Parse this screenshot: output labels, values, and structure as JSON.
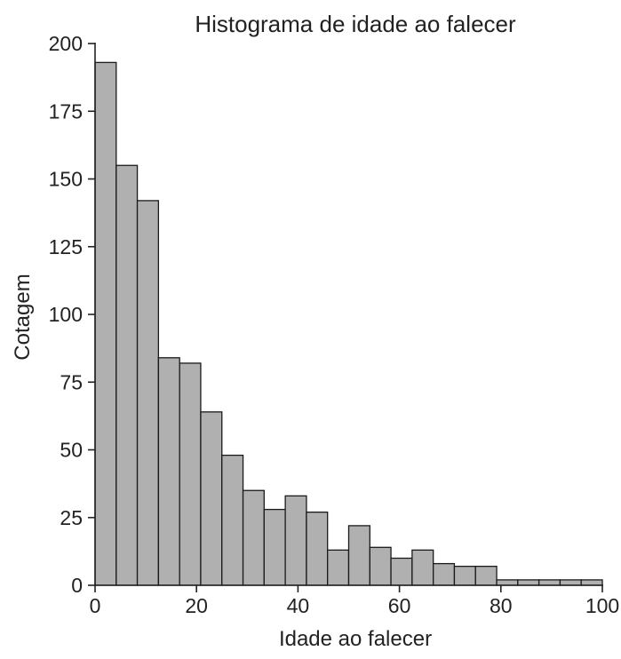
{
  "chart_data": {
    "type": "bar",
    "title": "Histograma de idade ao falecer",
    "xlabel": "Idade ao falecer",
    "ylabel": "Cotagem",
    "xlim": [
      0,
      100
    ],
    "ylim": [
      0,
      200
    ],
    "xticks": [
      "0",
      "20",
      "40",
      "60",
      "80",
      "100"
    ],
    "yticks": [
      "0",
      "25",
      "50",
      "75",
      "100",
      "125",
      "150",
      "175",
      "200"
    ],
    "bin_width": 4.17,
    "bins": [
      {
        "x0": 0.0,
        "x1": 4.17,
        "count": 193
      },
      {
        "x0": 4.17,
        "x1": 8.33,
        "count": 155
      },
      {
        "x0": 8.33,
        "x1": 12.5,
        "count": 142
      },
      {
        "x0": 12.5,
        "x1": 16.67,
        "count": 84
      },
      {
        "x0": 16.67,
        "x1": 20.83,
        "count": 82
      },
      {
        "x0": 20.83,
        "x1": 25.0,
        "count": 64
      },
      {
        "x0": 25.0,
        "x1": 29.17,
        "count": 48
      },
      {
        "x0": 29.17,
        "x1": 33.33,
        "count": 35
      },
      {
        "x0": 33.33,
        "x1": 37.5,
        "count": 28
      },
      {
        "x0": 37.5,
        "x1": 41.67,
        "count": 33
      },
      {
        "x0": 41.67,
        "x1": 45.83,
        "count": 27
      },
      {
        "x0": 45.83,
        "x1": 50.0,
        "count": 13
      },
      {
        "x0": 50.0,
        "x1": 54.17,
        "count": 22
      },
      {
        "x0": 54.17,
        "x1": 58.33,
        "count": 14
      },
      {
        "x0": 58.33,
        "x1": 62.5,
        "count": 10
      },
      {
        "x0": 62.5,
        "x1": 66.67,
        "count": 13
      },
      {
        "x0": 66.67,
        "x1": 70.83,
        "count": 8
      },
      {
        "x0": 70.83,
        "x1": 75.0,
        "count": 7
      },
      {
        "x0": 75.0,
        "x1": 79.17,
        "count": 7
      },
      {
        "x0": 79.17,
        "x1": 83.33,
        "count": 2
      },
      {
        "x0": 83.33,
        "x1": 87.5,
        "count": 2
      },
      {
        "x0": 87.5,
        "x1": 91.67,
        "count": 2
      },
      {
        "x0": 91.67,
        "x1": 95.83,
        "count": 2
      },
      {
        "x0": 95.83,
        "x1": 100.0,
        "count": 2
      }
    ],
    "grid": false,
    "bar_color": "#b0b0b0",
    "edge_color": "#1a1a1a"
  }
}
